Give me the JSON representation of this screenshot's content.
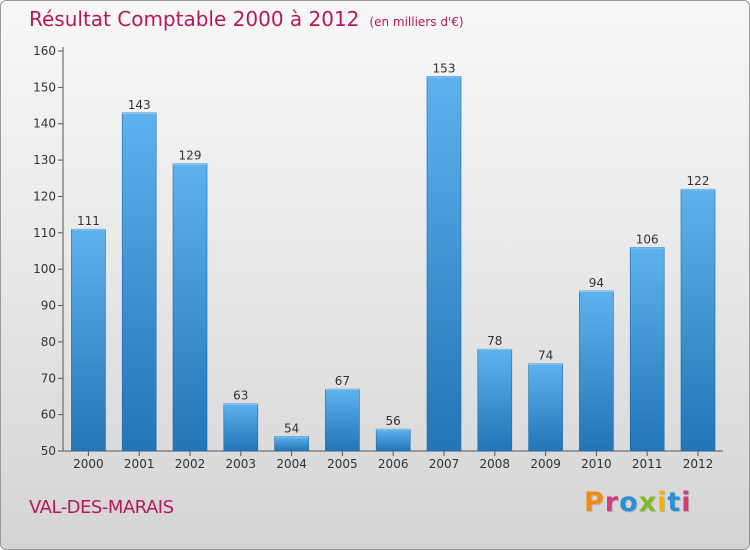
{
  "header": {
    "title": "Résultat Comptable 2000 à 2012",
    "subtitle": "(en milliers d'€)"
  },
  "footer": {
    "commune": "VAL-DES-MARAIS",
    "logo_text": "Proxiti"
  },
  "colors": {
    "title": "#b5195b",
    "bar_top": "#5db2ee",
    "bar_bottom": "#2275b7",
    "logo_letters": [
      "#f08a16",
      "#d23c7c",
      "#2c8fd1",
      "#7dbb2a",
      "#f0b400",
      "#2c8fd1",
      "#d23c7c"
    ]
  },
  "chart_data": {
    "type": "bar",
    "title": "Résultat Comptable 2000 à 2012",
    "subtitle": "(en milliers d'€)",
    "xlabel": "",
    "ylabel": "",
    "categories": [
      "2000",
      "2001",
      "2002",
      "2003",
      "2004",
      "2005",
      "2006",
      "2007",
      "2008",
      "2009",
      "2010",
      "2011",
      "2012"
    ],
    "values": [
      111,
      143,
      129,
      63,
      54,
      67,
      56,
      153,
      78,
      74,
      94,
      106,
      122
    ],
    "ylim": [
      50,
      160
    ],
    "yticks": [
      50,
      60,
      70,
      80,
      90,
      100,
      110,
      120,
      130,
      140,
      150,
      160
    ],
    "grid": false,
    "data_labels": true
  }
}
